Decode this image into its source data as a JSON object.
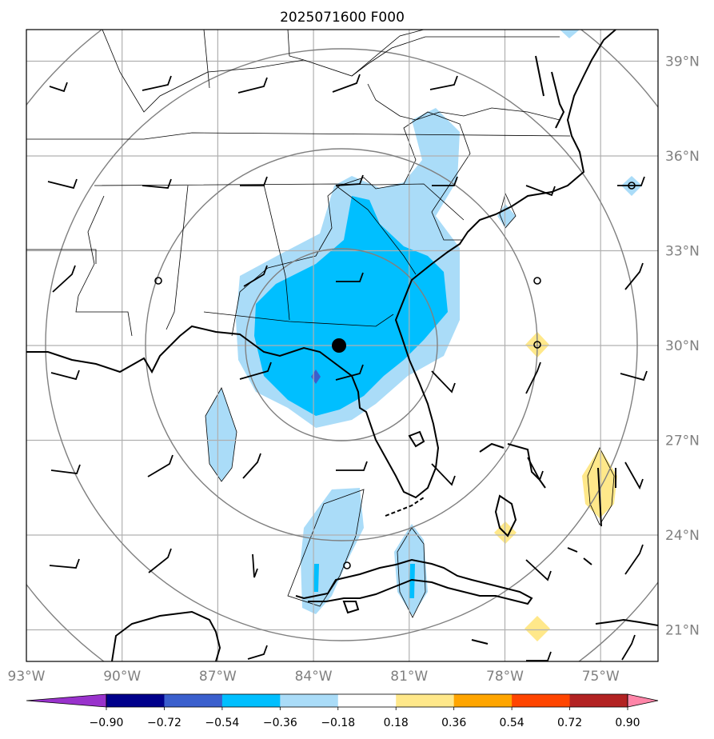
{
  "map": {
    "title": "2025071600 F000",
    "lon_labels": [
      "93°W",
      "90°W",
      "87°W",
      "84°W",
      "81°W",
      "78°W",
      "75°W"
    ],
    "lat_labels": [
      "39°N",
      "36°N",
      "33°N",
      "30°N",
      "27°N",
      "24°N",
      "21°N"
    ],
    "lon_values": [
      -93,
      -90,
      -87,
      -84,
      -81,
      -78,
      -75
    ],
    "lat_values": [
      39,
      36,
      33,
      30,
      27,
      24,
      21
    ],
    "extent": {
      "lon_min": -93.0,
      "lon_max": -73.2,
      "lat_min": 20.0,
      "lat_max": 40.0
    },
    "center_marker": {
      "lon": -83.2,
      "lat": 30.0
    },
    "colors": {
      "grid": "#b0b0b0",
      "range_rings": "#808080",
      "coast": "#000000",
      "title": "#000000",
      "tick_labels": "#808080"
    }
  },
  "colorbar": {
    "labels": [
      "−0.90",
      "−0.72",
      "−0.54",
      "−0.36",
      "−0.18",
      "0.18",
      "0.36",
      "0.54",
      "0.72",
      "0.90"
    ],
    "levels": [
      -0.9,
      -0.72,
      -0.54,
      -0.36,
      -0.18,
      0.18,
      0.36,
      0.54,
      0.72,
      0.9
    ],
    "colors": [
      "#9932cc",
      "#00008b",
      "#3a5fcd",
      "#00bfff",
      "#aadcf8",
      "#ffffff",
      "#ffe88a",
      "#ffa500",
      "#ff4500",
      "#b22222",
      "#ff85a8"
    ]
  }
}
